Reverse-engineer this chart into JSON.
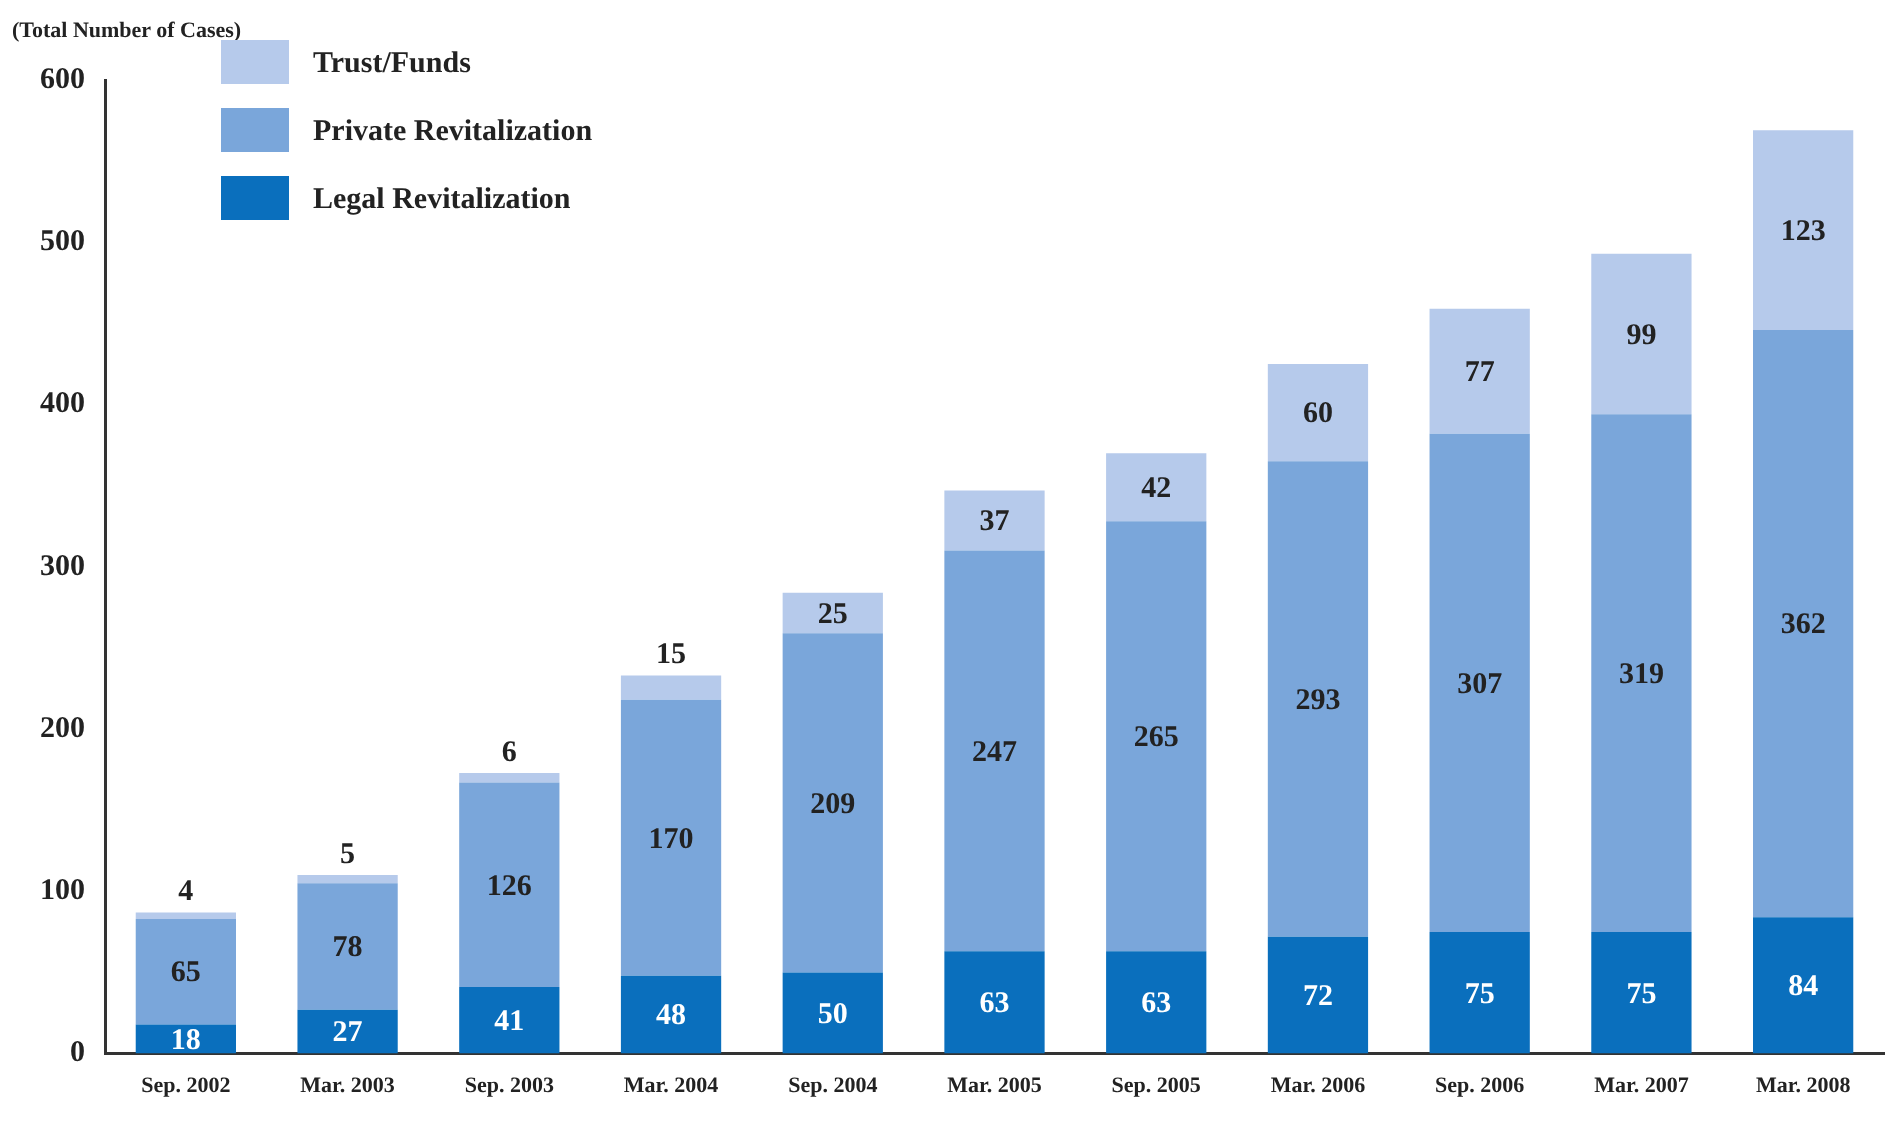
{
  "chart_data": {
    "type": "bar",
    "stacked": true,
    "ylabel": "(Total Number of Cases)",
    "categories": [
      "Sep. 2002",
      "Mar. 2003",
      "Sep. 2003",
      "Mar. 2004",
      "Sep. 2004",
      "Mar. 2005",
      "Sep. 2005",
      "Mar. 2006",
      "Sep. 2006",
      "Mar. 2007",
      "Mar. 2008"
    ],
    "series": [
      {
        "name": "Legal Revitalization",
        "color": "#0a6fbd",
        "values": [
          18,
          27,
          41,
          48,
          50,
          63,
          63,
          72,
          75,
          75,
          84
        ]
      },
      {
        "name": "Private Revitalization",
        "color": "#7aa6da",
        "values": [
          65,
          78,
          126,
          170,
          209,
          247,
          265,
          293,
          307,
          319,
          362
        ]
      },
      {
        "name": "Trust/Funds",
        "color": "#b6caeb",
        "values": [
          4,
          5,
          6,
          15,
          25,
          37,
          42,
          60,
          77,
          99,
          123
        ]
      }
    ],
    "ylim": [
      0,
      600
    ],
    "yticks": [
      0,
      100,
      200,
      300,
      400,
      500,
      600
    ],
    "grid": false,
    "legend": "top left",
    "data_labels": true
  }
}
